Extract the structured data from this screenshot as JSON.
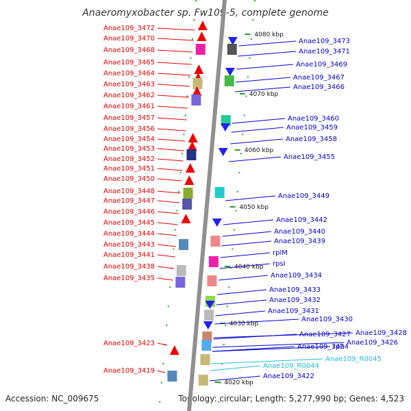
{
  "title": "Anaeromyxobacter sp. Fw109-5, complete genome",
  "accession": "Accession: NC_009675",
  "topology": "Topology: circular; Length: 5,277,990 bp; Genes: 4,523",
  "colors": {
    "left_label": "#e00000",
    "right_label": "#0000cc",
    "rna_label": "#22bbdd",
    "backbone": "#909090"
  },
  "kbp_marks": [
    "4080 kbp",
    "4070 kbp",
    "4060 kbp",
    "4050 kbp",
    "4040 kbp",
    "4030 kbp",
    "4020 kbp"
  ],
  "left_labels": [
    "Anae109_3472",
    "Anae109_3470",
    "Anae109_3468",
    "Anae109_3465",
    "Anae109_3464",
    "Anae109_3463",
    "Anae109_3462",
    "Anae109_3461",
    "Anae109_3457",
    "Anae109_3456",
    "Anae109_3454",
    "Anae109_3453",
    "Anae109_3452",
    "Anae109_3451",
    "Anae109_3450",
    "Anae109_3448",
    "Anae109_3447",
    "Anae109_3446",
    "Anae109_3445",
    "Anae109_3444",
    "Anae109_3443",
    "Anae109_3441",
    "Anae109_3438",
    "Anae109_3435",
    "Anae109_3423",
    "Anae109_3419"
  ],
  "right_labels": [
    "Anae109_3473",
    "Anae109_3471",
    "Anae109_3469",
    "Anae109_3467",
    "Anae109_3466",
    "Anae109_3460",
    "Anae109_3459",
    "Anae109_3458",
    "Anae109_3455",
    "Anae109_3449",
    "Anae109_3442",
    "Anae109_3440",
    "Anae109_3439",
    "rplM",
    "rpsI",
    "Anae109_3434",
    "Anae109_3433",
    "Anae109_3432",
    "Anae109_3431",
    "Anae109_3430",
    "Anae109_3428",
    "Anae109_3427",
    "Anae109_3426",
    "Anae109_3424",
    "rph",
    "Anae109_R0045",
    "Anae109_R0044",
    "Anae109_3422"
  ],
  "rna_labels": [
    "Anae109_R0045",
    "Anae109_R0044"
  ]
}
